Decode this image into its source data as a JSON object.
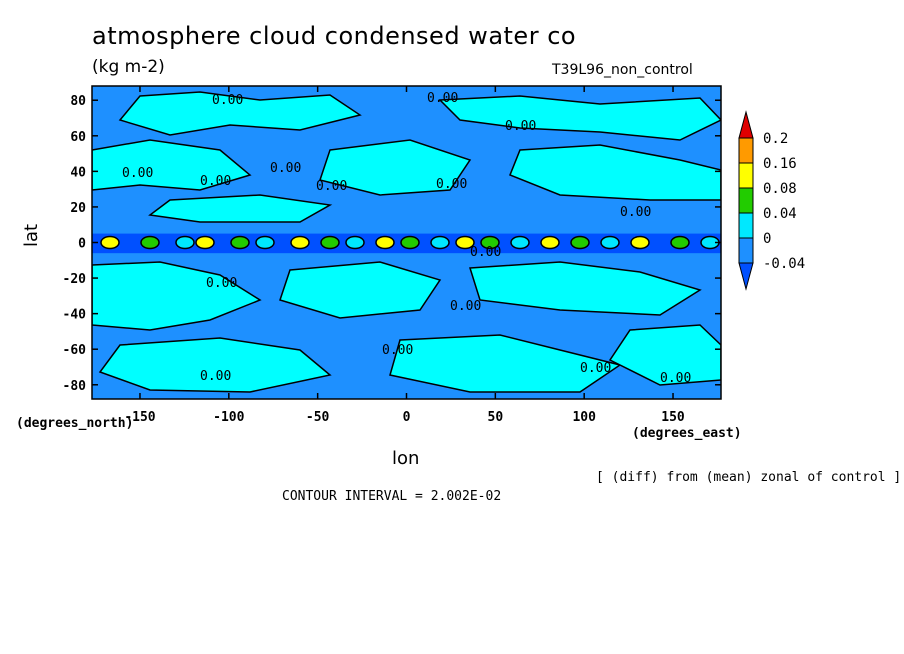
{
  "chart_data": {
    "type": "heatmap",
    "title": "atmosphere cloud condensed water co",
    "units": "(kg m-2)",
    "run_label": "T39L96_non_control",
    "xlabel": "lon",
    "ylabel": "lat",
    "x_unit": "(degrees_east)",
    "y_unit": "(degrees_north)",
    "x_ticks": [
      "-150",
      "-100",
      "-50",
      "0",
      "50",
      "100",
      "150"
    ],
    "x_tick_values": [
      -150,
      -100,
      -50,
      0,
      50,
      100,
      150
    ],
    "y_ticks": [
      "80",
      "60",
      "40",
      "20",
      "0",
      "-20",
      "-40",
      "-60",
      "-80"
    ],
    "y_tick_values": [
      80,
      60,
      40,
      20,
      0,
      -20,
      -40,
      -60,
      -80
    ],
    "xlim": [
      -177,
      177
    ],
    "ylim": [
      -88,
      88
    ],
    "contour_labels": [
      "0.00",
      "0.00",
      "0.00",
      "0.00",
      "0.00",
      "0.00",
      "0.00",
      "0.00",
      "0.00",
      "0.00",
      "0.00",
      "0.00",
      "0.00",
      "0.00",
      "0.00",
      "0.00"
    ],
    "colorbar": {
      "levels": [
        "0.2",
        "0.16",
        "0.08",
        "0.04",
        "0",
        "-0.04"
      ],
      "colors": [
        "#e00000",
        "#ff9a00",
        "#ffff00",
        "#22cc00",
        "#00e8ff",
        "#1e90ff",
        "#0050ff"
      ]
    },
    "note": "[ (diff) from (mean) zonal of control ]",
    "contour_interval": "CONTOUR INTERVAL = 2.002E-02",
    "colors": {
      "background_field": "#1e90ff",
      "positive_field": "#00ffff",
      "strong_negative": "#0050ff"
    }
  }
}
